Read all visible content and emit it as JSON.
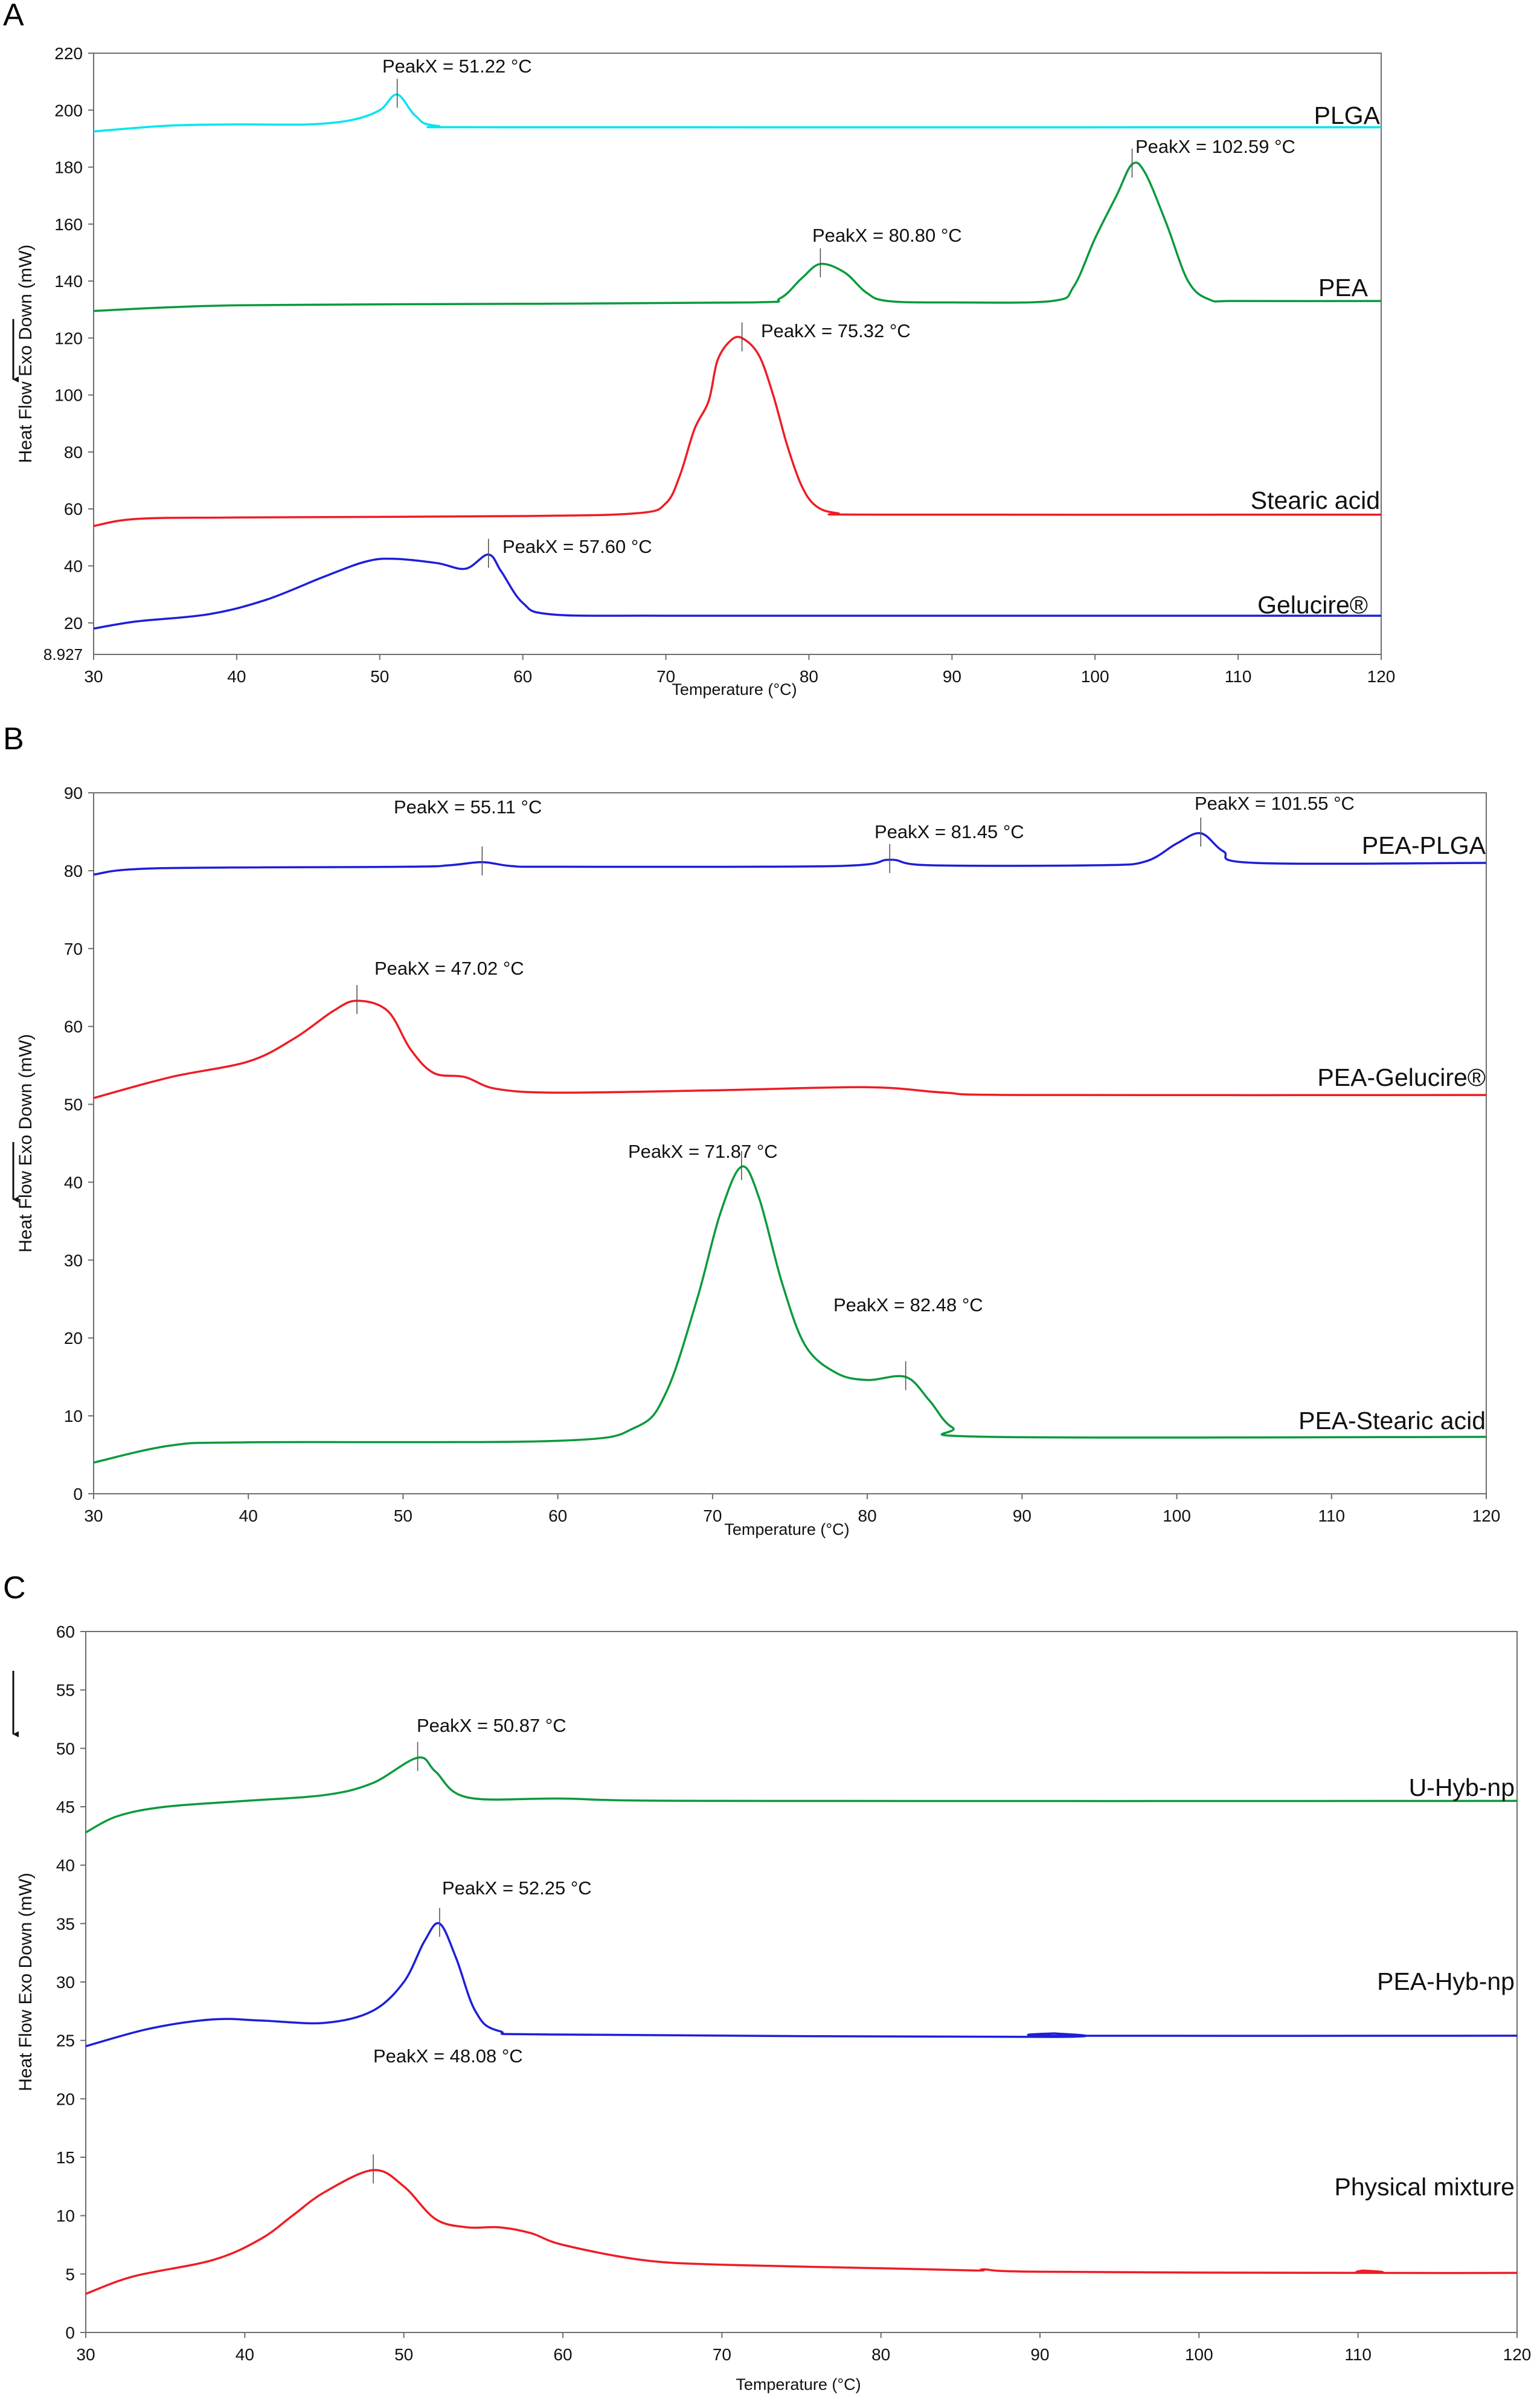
{
  "chart_data": [
    {
      "panel_label": "A",
      "type": "line",
      "xlabel": "Temperature (°C)",
      "ylabel": "Heat Flow Exo Down (mW)",
      "xlim": [
        30,
        120
      ],
      "ylim": [
        8.927,
        220
      ],
      "xticks": [
        30,
        40,
        50,
        60,
        70,
        80,
        90,
        100,
        110,
        120
      ],
      "yticks": [
        20,
        40,
        60,
        80,
        100,
        120,
        140,
        160,
        180,
        200,
        220
      ],
      "ymin_label": "8.927",
      "series": [
        {
          "name": "PLGA",
          "color": "#00e5ee",
          "points": [
            [
              30,
              192.5
            ],
            [
              35,
              194.5
            ],
            [
              40,
              195
            ],
            [
              45,
              195
            ],
            [
              48,
              196.5
            ],
            [
              50,
              200
            ],
            [
              51.22,
              205.5
            ],
            [
              52.5,
              198
            ],
            [
              54,
              194.5
            ],
            [
              60,
              194
            ],
            [
              120,
              194
            ]
          ]
        },
        {
          "name": "PEA",
          "color": "#0a9a3c",
          "points": [
            [
              30,
              129.5
            ],
            [
              40,
              131.5
            ],
            [
              60,
              132
            ],
            [
              76,
              132.5
            ],
            [
              78,
              134
            ],
            [
              79.5,
              141
            ],
            [
              80.8,
              146
            ],
            [
              82.5,
              143
            ],
            [
              84,
              136
            ],
            [
              85.5,
              133
            ],
            [
              90,
              132.5
            ],
            [
              97,
              133
            ],
            [
              98.5,
              138
            ],
            [
              100,
              155
            ],
            [
              101.5,
              170
            ],
            [
              102.59,
              181
            ],
            [
              103.5,
              178
            ],
            [
              105,
              160
            ],
            [
              106.5,
              140
            ],
            [
              108,
              133.5
            ],
            [
              110,
              133
            ],
            [
              120,
              133
            ]
          ]
        },
        {
          "name": "Stearic acid",
          "color": "#ee1c24",
          "points": [
            [
              30,
              54
            ],
            [
              33,
              56.5
            ],
            [
              40,
              57
            ],
            [
              60,
              57.5
            ],
            [
              68,
              58.5
            ],
            [
              70,
              62
            ],
            [
              71,
              72
            ],
            [
              72,
              88
            ],
            [
              73,
              98
            ],
            [
              73.6,
              112
            ],
            [
              74.5,
              119
            ],
            [
              75.32,
              120
            ],
            [
              76.5,
              114
            ],
            [
              77.5,
              100
            ],
            [
              78.5,
              82
            ],
            [
              79.5,
              68
            ],
            [
              80.5,
              61
            ],
            [
              82,
              58.5
            ],
            [
              85,
              58
            ],
            [
              120,
              58
            ]
          ]
        },
        {
          "name": "Gelucire®",
          "color": "#1e1ed8",
          "points": [
            [
              30,
              18
            ],
            [
              33,
              20.5
            ],
            [
              38,
              23
            ],
            [
              42,
              28
            ],
            [
              46,
              36
            ],
            [
              49,
              41.5
            ],
            [
              51,
              42.5
            ],
            [
              54,
              41
            ],
            [
              56,
              39
            ],
            [
              57.6,
              44
            ],
            [
              58.5,
              38
            ],
            [
              60,
              27
            ],
            [
              62,
              23
            ],
            [
              70,
              22.5
            ],
            [
              90,
              22.5
            ],
            [
              120,
              22.5
            ]
          ]
        }
      ],
      "annotations": [
        {
          "text": "PeakX = 51.22 °C",
          "x": 51.22,
          "y": 205.5,
          "series": "PLGA"
        },
        {
          "text": "PeakX = 102.59 °C",
          "x": 102.59,
          "y": 181,
          "series": "PEA"
        },
        {
          "text": "PeakX = 80.80 °C",
          "x": 80.8,
          "y": 146,
          "series": "PEA"
        },
        {
          "text": "PeakX = 75.32 °C",
          "x": 75.32,
          "y": 120,
          "series": "Stearic acid"
        },
        {
          "text": "PeakX = 57.60 °C",
          "x": 57.6,
          "y": 44,
          "series": "Gelucire®"
        }
      ]
    },
    {
      "panel_label": "B",
      "type": "line",
      "xlabel": "Temperature (°C)",
      "ylabel": "Heat Flow Exo Down (mW)",
      "xlim": [
        30,
        120
      ],
      "ylim": [
        0,
        90
      ],
      "xticks": [
        30,
        40,
        50,
        60,
        70,
        80,
        90,
        100,
        110,
        120
      ],
      "yticks": [
        0,
        10,
        20,
        30,
        40,
        50,
        60,
        70,
        80,
        90
      ],
      "series": [
        {
          "name": "PEA-PLGA",
          "color": "#1e1ed8",
          "points": [
            [
              30,
              79.5
            ],
            [
              34,
              80.3
            ],
            [
              50,
              80.5
            ],
            [
              53,
              80.7
            ],
            [
              55.11,
              81.1
            ],
            [
              57,
              80.6
            ],
            [
              60,
              80.5
            ],
            [
              78,
              80.6
            ],
            [
              81.45,
              81.4
            ],
            [
              84,
              80.7
            ],
            [
              95,
              80.7
            ],
            [
              98,
              81.2
            ],
            [
              100,
              83.5
            ],
            [
              101.55,
              84.8
            ],
            [
              103,
              82.5
            ],
            [
              105,
              81
            ],
            [
              120,
              81
            ]
          ]
        },
        {
          "name": "PEA-Gelucire®",
          "color": "#ee1c24",
          "points": [
            [
              30,
              50.8
            ],
            [
              35,
              53.5
            ],
            [
              40,
              55.5
            ],
            [
              43,
              58.5
            ],
            [
              45.5,
              62
            ],
            [
              47.02,
              63.3
            ],
            [
              49,
              62
            ],
            [
              50.5,
              57
            ],
            [
              52,
              54
            ],
            [
              54,
              53.5
            ],
            [
              56,
              52
            ],
            [
              60,
              51.5
            ],
            [
              70,
              51.8
            ],
            [
              80,
              52.2
            ],
            [
              85,
              51.5
            ],
            [
              90,
              51.2
            ],
            [
              120,
              51.2
            ]
          ]
        },
        {
          "name": "PEA-Stearic acid",
          "color": "#0a9a3c",
          "points": [
            [
              30,
              4
            ],
            [
              35,
              6.2
            ],
            [
              40,
              6.6
            ],
            [
              60,
              6.8
            ],
            [
              65,
              8.5
            ],
            [
              67,
              13
            ],
            [
              69,
              25
            ],
            [
              70.5,
              36
            ],
            [
              71.87,
              42
            ],
            [
              73,
              38
            ],
            [
              74.5,
              27
            ],
            [
              76,
              19
            ],
            [
              78,
              15.5
            ],
            [
              80,
              14.6
            ],
            [
              82.48,
              15
            ],
            [
              84,
              12
            ],
            [
              85.5,
              8.5
            ],
            [
              88,
              7.3
            ],
            [
              120,
              7.3
            ]
          ]
        }
      ],
      "annotations": [
        {
          "text": "PeakX = 55.11 °C",
          "x": 55.11,
          "y": 81.1,
          "series": "PEA-PLGA"
        },
        {
          "text": "PeakX = 81.45 °C",
          "x": 81.45,
          "y": 81.4,
          "series": "PEA-PLGA"
        },
        {
          "text": "PeakX = 101.55 °C",
          "x": 101.55,
          "y": 84.8,
          "series": "PEA-PLGA"
        },
        {
          "text": "PeakX = 47.02 °C",
          "x": 47.02,
          "y": 63.3,
          "series": "PEA-Gelucire®"
        },
        {
          "text": "PeakX = 71.87 °C",
          "x": 71.87,
          "y": 42,
          "series": "PEA-Stearic acid"
        },
        {
          "text": "PeakX = 82.48 °C",
          "x": 82.48,
          "y": 15,
          "series": "PEA-Stearic acid"
        }
      ]
    },
    {
      "panel_label": "C",
      "type": "line",
      "xlabel": "Temperature (°C)",
      "ylabel": "Heat Flow Exo Down (mW)",
      "xlim": [
        30,
        120
      ],
      "ylim": [
        0,
        60
      ],
      "xticks": [
        30,
        40,
        50,
        60,
        70,
        80,
        90,
        100,
        110,
        120
      ],
      "yticks": [
        0,
        5,
        10,
        15,
        20,
        25,
        30,
        35,
        40,
        45,
        50,
        55,
        60
      ],
      "series": [
        {
          "name": "U-Hyb-np",
          "color": "#0a9a3c",
          "points": [
            [
              30,
              42.8
            ],
            [
              32,
              44.2
            ],
            [
              35,
              45
            ],
            [
              40,
              45.5
            ],
            [
              45,
              46
            ],
            [
              48,
              47
            ],
            [
              50.87,
              49.2
            ],
            [
              52,
              48
            ],
            [
              54,
              45.8
            ],
            [
              60,
              45.7
            ],
            [
              70,
              45.5
            ],
            [
              120,
              45.5
            ]
          ]
        },
        {
          "name": "PEA-Hyb-np",
          "color": "#1e1ed8",
          "points": [
            [
              30,
              24.5
            ],
            [
              34,
              26
            ],
            [
              38,
              26.8
            ],
            [
              41,
              26.7
            ],
            [
              45,
              26.5
            ],
            [
              48,
              27.5
            ],
            [
              50,
              30
            ],
            [
              51.3,
              33.5
            ],
            [
              52.25,
              35
            ],
            [
              53.3,
              32
            ],
            [
              54.5,
              27.5
            ],
            [
              56,
              25.8
            ],
            [
              60,
              25.5
            ],
            [
              90.5,
              25.3
            ],
            [
              91,
              25.6
            ],
            [
              91.5,
              25.4
            ],
            [
              120,
              25.4
            ]
          ]
        },
        {
          "name": "Physical mixture",
          "color": "#ee1c24",
          "points": [
            [
              30,
              3.3
            ],
            [
              33,
              4.8
            ],
            [
              38,
              6.2
            ],
            [
              41,
              8
            ],
            [
              43,
              10
            ],
            [
              45,
              12
            ],
            [
              48.08,
              13.9
            ],
            [
              50,
              12.5
            ],
            [
              52,
              9.7
            ],
            [
              54,
              9
            ],
            [
              56,
              9
            ],
            [
              58,
              8.5
            ],
            [
              60,
              7.5
            ],
            [
              65,
              6.2
            ],
            [
              70,
              5.8
            ],
            [
              80,
              5.5
            ],
            [
              86,
              5.3
            ],
            [
              86.5,
              5.4
            ],
            [
              90,
              5.2
            ],
            [
              110,
              5.1
            ],
            [
              110.3,
              5.3
            ],
            [
              110.7,
              5.1
            ],
            [
              120,
              5.1
            ]
          ]
        }
      ],
      "annotations": [
        {
          "text": "PeakX = 50.87 °C",
          "x": 50.87,
          "y": 49.2,
          "series": "U-Hyb-np"
        },
        {
          "text": "PeakX = 52.25 °C",
          "x": 52.25,
          "y": 35,
          "series": "PEA-Hyb-np"
        },
        {
          "text": "PeakX = 48.08 °C",
          "x": 48.08,
          "y": 13.9,
          "series": "Physical mixture"
        }
      ]
    }
  ]
}
